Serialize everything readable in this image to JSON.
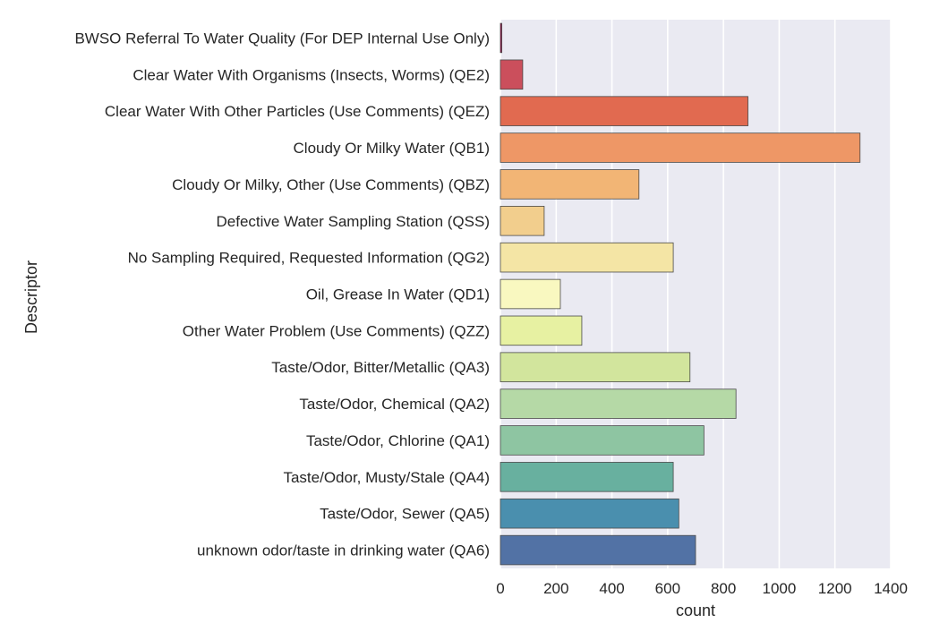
{
  "chart_data": {
    "type": "bar",
    "orientation": "horizontal",
    "xlabel": "count",
    "ylabel": "Descriptor",
    "xlim": [
      0,
      1400
    ],
    "xticks": [
      0,
      200,
      400,
      600,
      800,
      1000,
      1200,
      1400
    ],
    "grid": true,
    "background": "#EAEAF2",
    "categories": [
      "BWSO Referral To Water Quality (For DEP Internal Use Only)",
      "Clear Water With Organisms (Insects, Worms) (QE2)",
      "Clear Water With Other Particles (Use Comments) (QEZ)",
      "Cloudy Or Milky Water (QB1)",
      "Cloudy Or Milky, Other (Use Comments) (QBZ)",
      "Defective Water Sampling Station (QSS)",
      "No Sampling Required, Requested Information (QG2)",
      "Oil, Grease In Water (QD1)",
      "Other Water Problem (Use Comments) (QZZ)",
      "Taste/Odor, Bitter/Metallic (QA3)",
      "Taste/Odor, Chemical (QA2)",
      "Taste/Odor, Chlorine (QA1)",
      "Taste/Odor, Musty/Stale (QA4)",
      "Taste/Odor, Sewer (QA5)",
      "unknown odor/taste in drinking water (QA6)"
    ],
    "values": [
      5,
      80,
      888,
      1290,
      497,
      157,
      620,
      215,
      292,
      680,
      845,
      730,
      620,
      640,
      700
    ],
    "colors": [
      "#9E0142",
      "#CB4F5C",
      "#E16A50",
      "#EE9766",
      "#F2B575",
      "#F2CE8D",
      "#F4E5A5",
      "#F9F8C0",
      "#E7F1A2",
      "#D2E59D",
      "#B5D9A6",
      "#8EC5A2",
      "#68B09F",
      "#4A8FAE",
      "#5272A5"
    ]
  }
}
